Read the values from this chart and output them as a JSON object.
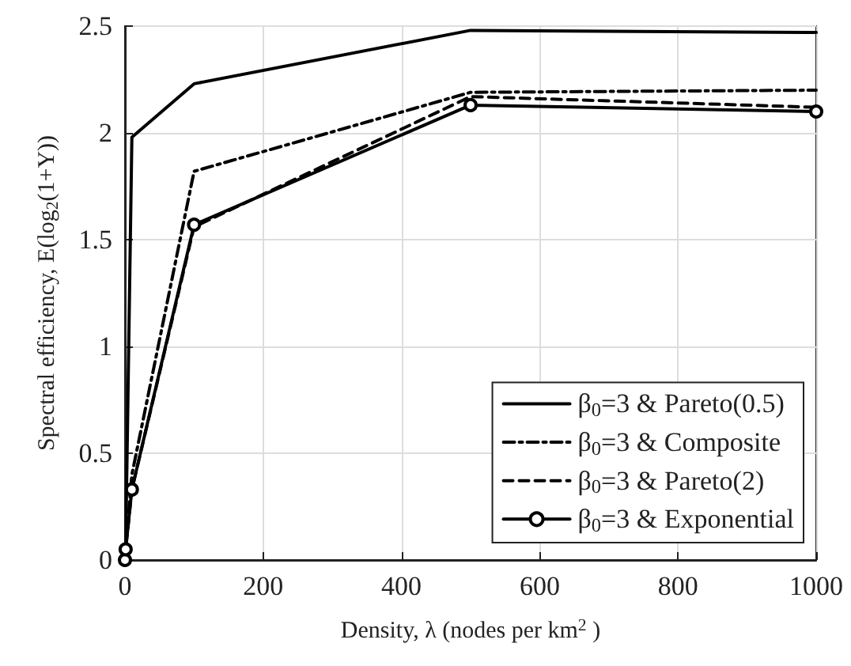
{
  "chart_data": {
    "type": "line",
    "xlabel": "Density, λ (nodes per km$^{2}$ )",
    "ylabel": "Spectral efficiency, E(log$_{2}$(1+Y))",
    "x": [
      0,
      1,
      10,
      100,
      500,
      1000
    ],
    "xlim": [
      0,
      1000
    ],
    "xticks": [
      0,
      200,
      400,
      600,
      800,
      1000
    ],
    "ylim": [
      0,
      2.5
    ],
    "yticks": [
      0,
      0.5,
      1,
      1.5,
      2,
      2.5
    ],
    "grid": true,
    "legend": "bottom right",
    "series": [
      {
        "name": "β$_{0}$=3 & Pareto(0.5)",
        "color": "#000000",
        "line_style": "solid",
        "marker": "none",
        "values": [
          0,
          0.05,
          1.98,
          2.23,
          2.48,
          2.47
        ]
      },
      {
        "name": "β$_{0}$=3 & Composite",
        "color": "#000000",
        "line_style": "dashdot",
        "marker": "none",
        "values": [
          0,
          0.05,
          0.4,
          1.82,
          2.19,
          2.2
        ]
      },
      {
        "name": "β$_{0}$=3 & Pareto(2)",
        "color": "#000000",
        "line_style": "dashed",
        "marker": "none",
        "values": [
          0,
          0.05,
          0.33,
          1.56,
          2.17,
          2.12
        ]
      },
      {
        "name": "β$_{0}$=3 & Exponential",
        "color": "#000000",
        "line_style": "solid",
        "marker": "circle",
        "values": [
          0,
          0.05,
          0.33,
          1.57,
          2.13,
          2.1
        ]
      }
    ]
  }
}
